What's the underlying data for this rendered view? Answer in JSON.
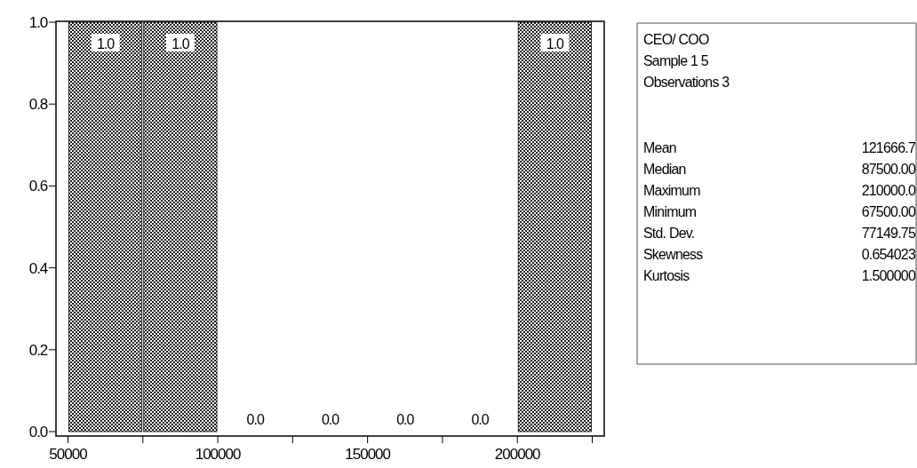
{
  "chart_data": {
    "type": "histogram",
    "bins": [
      50000,
      75000,
      100000,
      125000,
      150000,
      175000,
      200000,
      225000
    ],
    "values": [
      1,
      1,
      0,
      0,
      0,
      0,
      1
    ],
    "value_labels": [
      "1.0",
      "1.0",
      "0.0",
      "0.0",
      "0.0",
      "0.0",
      "1.0"
    ],
    "color": "#000000",
    "xlim": [
      46000,
      229000
    ],
    "xticks": [
      50000,
      {
        "value": 75000,
        "label": null
      },
      100000,
      {
        "value": 125000,
        "label": null
      },
      150000,
      {
        "value": 175000,
        "label": null
      },
      200000,
      {
        "value": 225000,
        "label": null
      }
    ],
    "ylim": [
      0,
      1
    ],
    "yticks": [
      {
        "value": 0,
        "label": "0.0"
      },
      {
        "value": 0.2,
        "label": "0.2"
      },
      {
        "value": 0.4,
        "label": "0.4"
      },
      {
        "value": 0.6,
        "label": "0.6"
      },
      {
        "value": 0.8,
        "label": "0.8"
      },
      {
        "value": 1,
        "label": "1.0"
      }
    ],
    "grid": false,
    "annotations": [
      "CEO/ COO",
      "Sample 1 5",
      "Observations 3",
      "Mean",
      "121666.7",
      "Median",
      "87500.00",
      "Maximum",
      "210000.0",
      "Minimum",
      "67500.00",
      "Std. Dev.",
      "77149.75",
      "Skewness",
      "0.654023",
      "Kurtosis",
      "1.500000"
    ]
  }
}
